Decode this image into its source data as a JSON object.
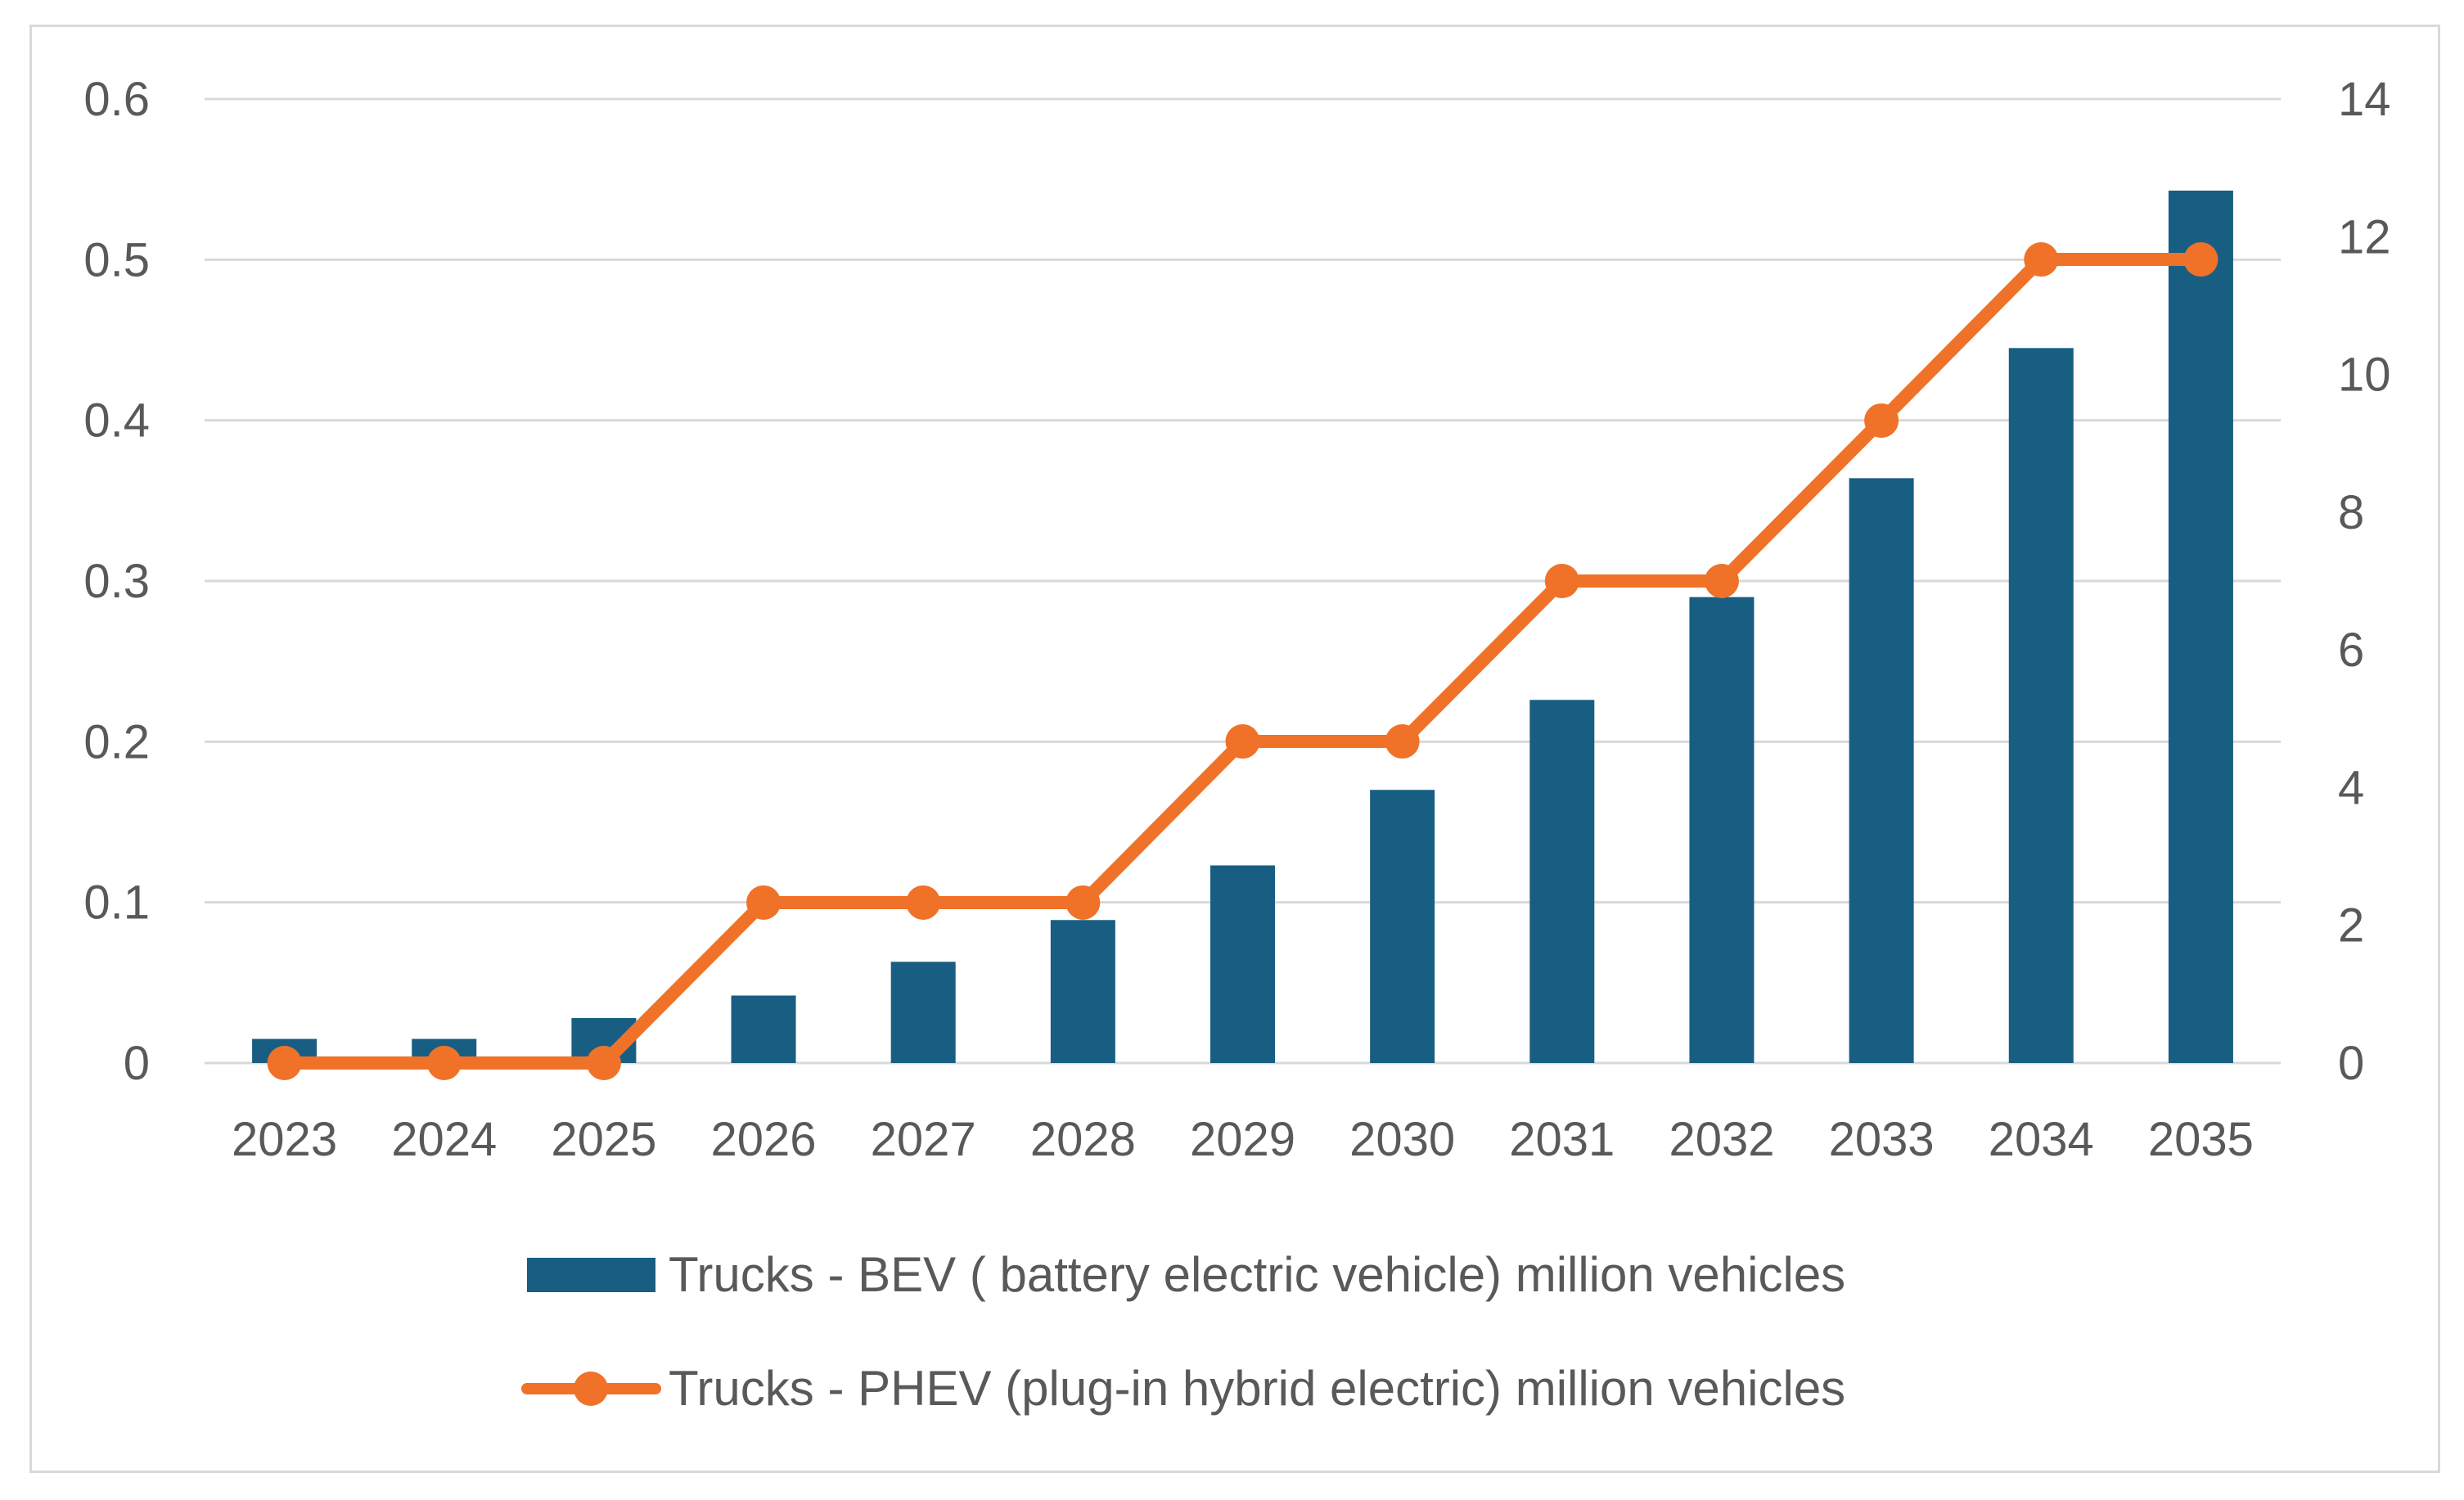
{
  "chart_data": {
    "type": "bar",
    "categories": [
      "2023",
      "2024",
      "2025",
      "2026",
      "2027",
      "2028",
      "2029",
      "2030",
      "2031",
      "2032",
      "2033",
      "2034",
      "2035"
    ],
    "series": [
      {
        "name": "Trucks -  BEV ( battery electric vehicle) million vehicles",
        "type": "bar",
        "axis": "left",
        "color": "#185e82",
        "values": [
          0.015,
          0.015,
          0.028,
          0.042,
          0.063,
          0.089,
          0.123,
          0.17,
          0.226,
          0.29,
          0.364,
          0.445,
          0.543
        ]
      },
      {
        "name": "Trucks - PHEV  (plug-in hybrid electric) million vehicles",
        "type": "line",
        "axis": "right",
        "color": "#f07228",
        "values": [
          0,
          0,
          0,
          2.33,
          2.33,
          2.33,
          4.67,
          4.67,
          7.0,
          7.0,
          9.33,
          11.67,
          11.67
        ]
      }
    ],
    "y_left": {
      "ylim": [
        0,
        0.6
      ],
      "ticks": [
        "0",
        "0.1",
        "0.2",
        "0.3",
        "0.4",
        "0.5",
        "0.6"
      ]
    },
    "y_right": {
      "ylim": [
        0,
        14
      ],
      "ticks": [
        "0",
        "2",
        "4",
        "6",
        "8",
        "10",
        "12",
        "14"
      ]
    },
    "grid": true,
    "legend_position": "bottom"
  }
}
